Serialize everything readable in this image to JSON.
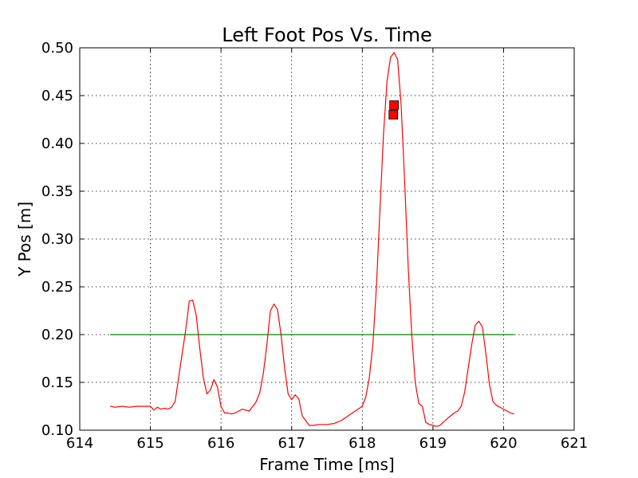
{
  "chart_data": {
    "type": "line",
    "title": "Left Foot Pos Vs. Time",
    "xlabel": "Frame Time [ms]",
    "ylabel": "Y Pos [m]",
    "xlim": [
      614,
      621
    ],
    "ylim": [
      0.1,
      0.5
    ],
    "xticks": [
      "614",
      "615",
      "616",
      "617",
      "618",
      "619",
      "620",
      "621"
    ],
    "yticks": [
      "0.10",
      "0.15",
      "0.20",
      "0.25",
      "0.30",
      "0.35",
      "0.40",
      "0.45",
      "0.50"
    ],
    "grid": true,
    "colors": {
      "trajectory": "#ff0000",
      "threshold": "#008000",
      "marker_fill": "#ff0000",
      "marker_edge": "#000000"
    },
    "series": [
      {
        "color": "#ff0000",
        "x": [
          614.43,
          614.5,
          614.6,
          614.7,
          614.8,
          614.9,
          615.0,
          615.05,
          615.1,
          615.15,
          615.2,
          615.25,
          615.3,
          615.35,
          615.4,
          615.45,
          615.5,
          615.55,
          615.6,
          615.65,
          615.7,
          615.75,
          615.8,
          615.85,
          615.9,
          615.95,
          616.0,
          616.05,
          616.1,
          616.15,
          616.2,
          616.3,
          616.4,
          616.5,
          616.55,
          616.6,
          616.65,
          616.7,
          616.75,
          616.8,
          616.85,
          616.9,
          616.95,
          617.0,
          617.05,
          617.1,
          617.15,
          617.2,
          617.25,
          617.3,
          617.4,
          617.5,
          617.6,
          617.7,
          617.8,
          617.9,
          618.0,
          618.05,
          618.1,
          618.15,
          618.2,
          618.25,
          618.3,
          618.35,
          618.4,
          618.45,
          618.5,
          618.55,
          618.6,
          618.65,
          618.7,
          618.75,
          618.8,
          618.85,
          618.9,
          618.95,
          619.0,
          619.05,
          619.1,
          619.2,
          619.3,
          619.35,
          619.4,
          619.45,
          619.5,
          619.55,
          619.6,
          619.65,
          619.7,
          619.75,
          619.8,
          619.85,
          619.9,
          620.0,
          620.1,
          620.15
        ],
        "values": [
          0.125,
          0.124,
          0.125,
          0.124,
          0.125,
          0.125,
          0.125,
          0.121,
          0.124,
          0.122,
          0.123,
          0.122,
          0.124,
          0.13,
          0.155,
          0.18,
          0.205,
          0.235,
          0.236,
          0.22,
          0.185,
          0.155,
          0.138,
          0.142,
          0.153,
          0.145,
          0.125,
          0.118,
          0.118,
          0.117,
          0.118,
          0.122,
          0.12,
          0.13,
          0.14,
          0.16,
          0.19,
          0.225,
          0.232,
          0.226,
          0.2,
          0.165,
          0.138,
          0.132,
          0.137,
          0.133,
          0.115,
          0.11,
          0.105,
          0.105,
          0.106,
          0.106,
          0.107,
          0.11,
          0.115,
          0.12,
          0.125,
          0.135,
          0.155,
          0.19,
          0.25,
          0.33,
          0.41,
          0.465,
          0.49,
          0.495,
          0.488,
          0.44,
          0.36,
          0.27,
          0.2,
          0.15,
          0.128,
          0.125,
          0.108,
          0.106,
          0.105,
          0.104,
          0.105,
          0.112,
          0.118,
          0.12,
          0.125,
          0.14,
          0.165,
          0.19,
          0.21,
          0.214,
          0.208,
          0.18,
          0.148,
          0.13,
          0.126,
          0.122,
          0.118,
          0.117
        ]
      },
      {
        "color": "#008000",
        "x": [
          614.43,
          620.15
        ],
        "values": [
          0.2,
          0.2
        ]
      }
    ],
    "markers": [
      {
        "x": 618.45,
        "y": 0.44
      },
      {
        "x": 618.44,
        "y": 0.43
      }
    ]
  }
}
